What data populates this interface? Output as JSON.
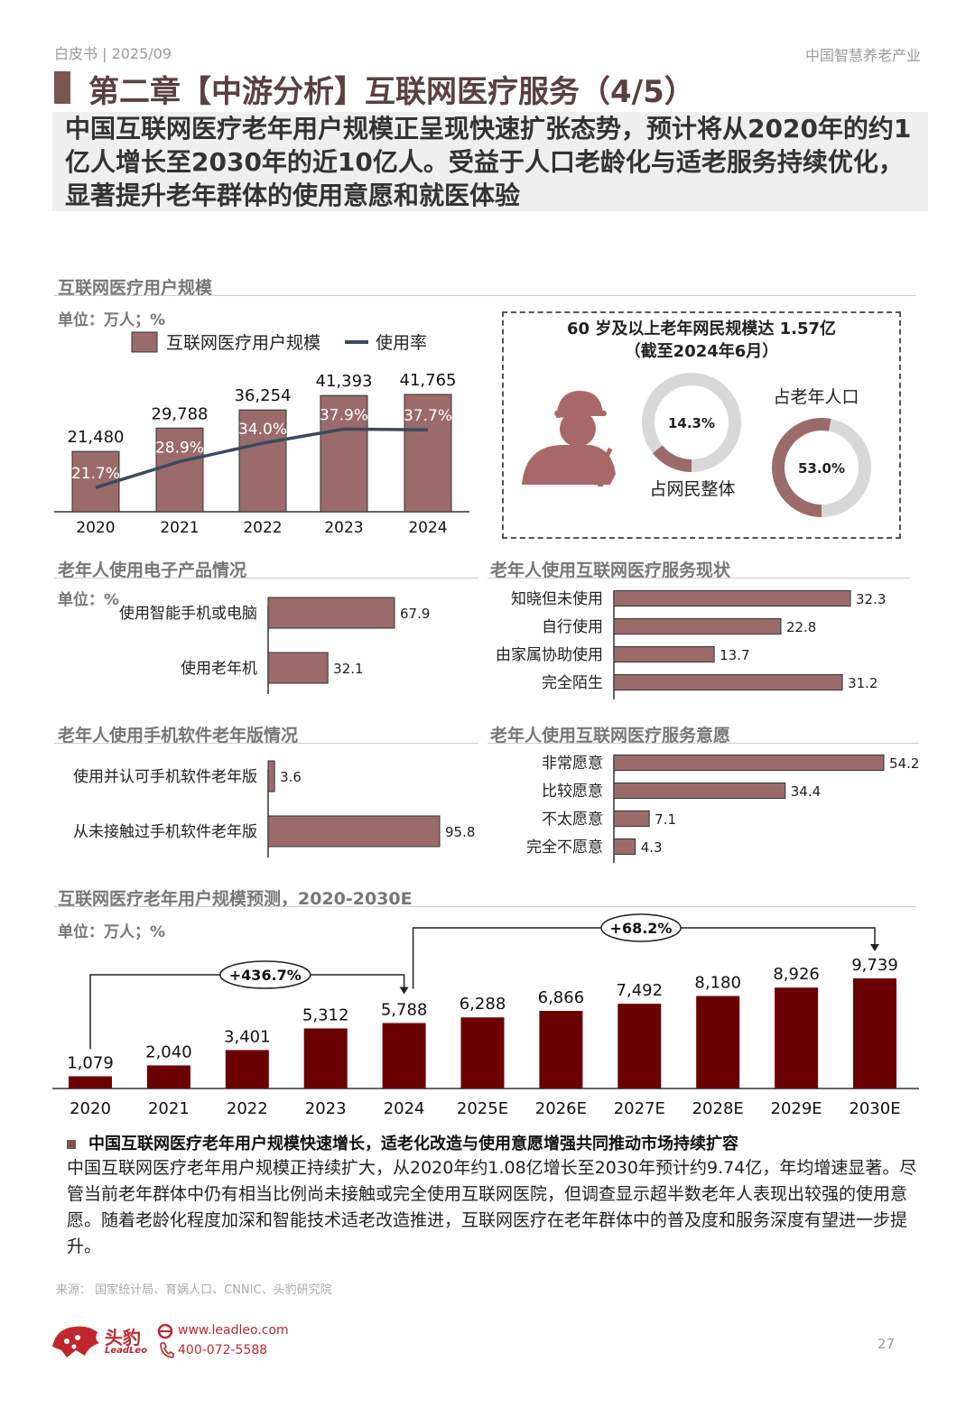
{
  "header": {
    "left": "白皮书 | 2025/09",
    "right": "中国智慧养老产业"
  },
  "chapter_title": "第二章【中游分析】互联网医疗服务（4/5）",
  "summary": "中国互联网医疗老年用户规模正呈现快速扩张态势，预计将从2020年的约1亿人增长至2030年的近10亿人。受益于人口老龄化与适老服务持续优化，显著提升老年群体的使用意愿和就医体验",
  "sections": {
    "users": "互联网医疗用户规模",
    "devices": "老年人使用电子产品情况",
    "status": "老年人使用互联网医疗服务现状",
    "apps": "老年人使用手机软件老年版情况",
    "willing": "老年人使用互联网医疗服务意愿",
    "forecast": "互联网医疗老年用户规模预测，2020-2030E"
  },
  "units": {
    "wan_pct": "单位：万人；%",
    "pct": "单位：%"
  },
  "colors": {
    "bar": "#9b6b6b",
    "dark_bar": "#6b0000",
    "line": "#3b4a5c",
    "accent": "#7a5454",
    "brand": "#c0272d"
  },
  "box": {
    "title": "60 岁及以上老年网民规模达 1.57亿",
    "subtitle": "（截至2024年6月）",
    "icon": "elderly-person-icon",
    "donut1": {
      "value": 14.3,
      "label": "14.3%",
      "caption": "占网民整体"
    },
    "donut2": {
      "value": 53.0,
      "label": "53.0%",
      "caption": "占老年人口"
    }
  },
  "chart_data": [
    {
      "type": "bar",
      "categories": [
        "2020",
        "2021",
        "2022",
        "2023",
        "2024"
      ],
      "series": [
        {
          "name": "互联网医疗用户规模",
          "values": [
            21480,
            29788,
            36254,
            41393,
            41765
          ],
          "labels": [
            "21,480",
            "29,788",
            "36,254",
            "41,393",
            "41,765"
          ]
        },
        {
          "name": "使用率",
          "type": "line",
          "values": [
            21.7,
            28.9,
            34.0,
            37.9,
            37.7
          ],
          "labels": [
            "21.7%",
            "28.9%",
            "34.0%",
            "37.9%",
            "37.7%"
          ]
        }
      ],
      "ylim": [
        0,
        45000
      ]
    },
    {
      "type": "bar",
      "orientation": "horizontal",
      "categories": [
        "使用智能手机或电脑",
        "使用老年机"
      ],
      "values": [
        67.9,
        32.1
      ],
      "labels": [
        "67.9",
        "32.1"
      ]
    },
    {
      "type": "bar",
      "orientation": "horizontal",
      "categories": [
        "知晓但未使用",
        "自行使用",
        "由家属协助使用",
        "完全陌生"
      ],
      "values": [
        32.3,
        22.8,
        13.7,
        31.2
      ],
      "labels": [
        "32.3",
        "22.8",
        "13.7",
        "31.2"
      ]
    },
    {
      "type": "bar",
      "orientation": "horizontal",
      "categories": [
        "使用并认可手机软件老年版",
        "从未接触过手机软件老年版"
      ],
      "values": [
        3.6,
        95.8
      ],
      "labels": [
        "3.6",
        "95.8"
      ]
    },
    {
      "type": "bar",
      "orientation": "horizontal",
      "categories": [
        "非常愿意",
        "比较愿意",
        "不太愿意",
        "完全不愿意"
      ],
      "values": [
        54.2,
        34.4,
        7.1,
        4.3
      ],
      "labels": [
        "54.2",
        "34.4",
        "7.1",
        "4.3"
      ]
    },
    {
      "type": "bar",
      "categories": [
        "2020",
        "2021",
        "2022",
        "2023",
        "2024",
        "2025E",
        "2026E",
        "2027E",
        "2028E",
        "2029E",
        "2030E"
      ],
      "values": [
        1079,
        2040,
        3401,
        5312,
        5788,
        6288,
        6866,
        7492,
        8180,
        8926,
        9739
      ],
      "labels": [
        "1,079",
        "2,040",
        "3,401",
        "5,312",
        "5,788",
        "6,288",
        "6,866",
        "7,492",
        "8,180",
        "8,926",
        "9,739"
      ],
      "annotations": [
        "+436.7%",
        "+68.2%"
      ],
      "ylim": [
        0,
        10000
      ]
    }
  ],
  "conclusion": {
    "heading": "中国互联网医疗老年用户规模快速增长，适老化改造与使用意愿增强共同推动市场持续扩容",
    "body": "中国互联网医疗老年用户规模正持续扩大，从2020年约1.08亿增长至2030年预计约9.74亿，年均增速显著。尽管当前老年群体中仍有相当比例尚未接触或完全使用互联网医院，但调查显示超半数老年人表现出较强的使用意愿。随着老龄化程度加深和智能技术适老改造推进，互联网医疗在老年群体中的普及度和服务深度有望进一步提升。"
  },
  "footer": {
    "source": "来源：  国家统计局、育娲人口、CNNIC、头豹研究院",
    "logo_cn": "头豹",
    "logo_en": "LeadLeo",
    "website": "www.leadleo.com",
    "phone": "400-072-5588",
    "page": "27"
  }
}
